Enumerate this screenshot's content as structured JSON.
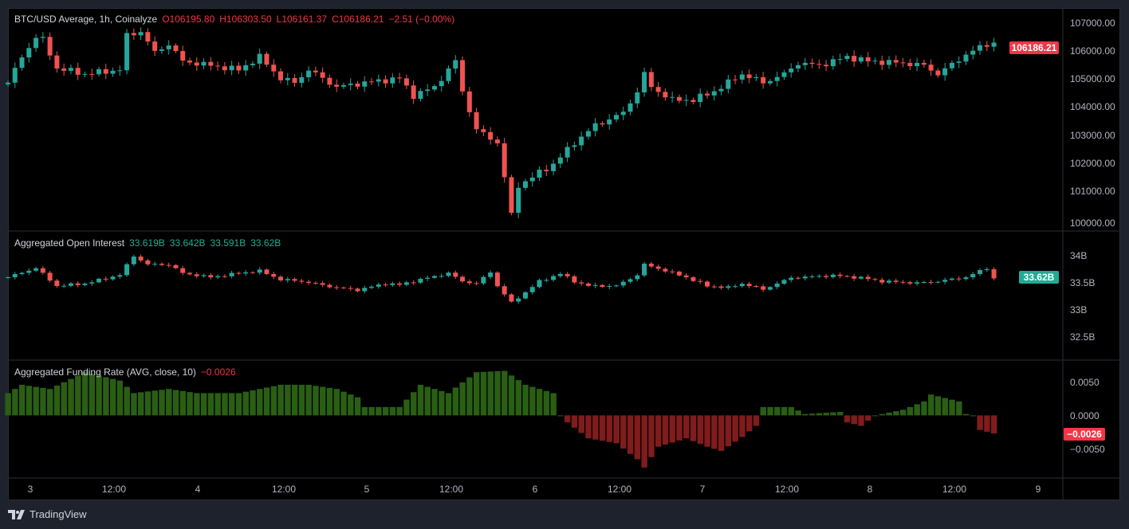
{
  "main_legend": {
    "symbol": "BTC/USD Average, 1h, Coinalyze",
    "open": "O106195.80",
    "high": "H106303.50",
    "low": "L106161.37",
    "close": "C106186.21",
    "change": "−2.51 (−0.00%)"
  },
  "oi_legend": {
    "title": "Aggregated Open Interest",
    "o": "33.619B",
    "h": "33.642B",
    "l": "33.591B",
    "c": "33.62B"
  },
  "fr_legend": {
    "title": "Aggregated Funding Rate (AVG, close, 10)",
    "value": "−0.0026"
  },
  "brand": "TradingView",
  "colors": {
    "up": "#26a69a",
    "down": "#ef5350",
    "fr_pos": "#2a5e14",
    "fr_neg": "#801c1c"
  },
  "chart_data": [
    {
      "type": "candlestick",
      "title": "BTC/USD Average, 1h, Coinalyze",
      "ylim": [
        100000,
        107000
      ],
      "y_ticks": [
        "107000.00",
        "106000.00",
        "105000.00",
        "104000.00",
        "103000.00",
        "102000.00",
        "101000.00",
        "100000.00"
      ],
      "last_value": "106186.21",
      "close_keypoints": [
        [
          0,
          104880
        ],
        [
          2,
          105720
        ],
        [
          4,
          106360
        ],
        [
          5,
          106280
        ],
        [
          7,
          105350
        ],
        [
          11,
          105160
        ],
        [
          16,
          105300
        ],
        [
          17,
          106410
        ],
        [
          19,
          106550
        ],
        [
          21,
          105860
        ],
        [
          23,
          106140
        ],
        [
          25,
          105580
        ],
        [
          29,
          105440
        ],
        [
          33,
          105300
        ],
        [
          36,
          105720
        ],
        [
          39,
          105020
        ],
        [
          41,
          104880
        ],
        [
          43,
          105300
        ],
        [
          47,
          104740
        ],
        [
          51,
          104880
        ],
        [
          56,
          105020
        ],
        [
          58,
          104460
        ],
        [
          61,
          104740
        ],
        [
          64,
          105580
        ],
        [
          65,
          104600
        ],
        [
          67,
          103350
        ],
        [
          70,
          102930
        ],
        [
          71,
          101810
        ],
        [
          72,
          100560
        ],
        [
          73,
          101530
        ],
        [
          75,
          101810
        ],
        [
          78,
          102230
        ],
        [
          81,
          102930
        ],
        [
          84,
          103490
        ],
        [
          88,
          103900
        ],
        [
          90,
          104600
        ],
        [
          91,
          105160
        ],
        [
          92,
          104740
        ],
        [
          95,
          104320
        ],
        [
          98,
          104320
        ],
        [
          101,
          104600
        ],
        [
          105,
          105160
        ],
        [
          108,
          104880
        ],
        [
          111,
          105160
        ],
        [
          113,
          105520
        ],
        [
          116,
          105440
        ],
        [
          120,
          105720
        ],
        [
          123,
          105580
        ],
        [
          128,
          105520
        ],
        [
          131,
          105440
        ],
        [
          133,
          105160
        ],
        [
          136,
          105630
        ],
        [
          137,
          105800
        ],
        [
          140,
          106140
        ],
        [
          141,
          106186
        ]
      ]
    },
    {
      "type": "candlestick",
      "title": "Aggregated Open Interest",
      "unit": "B",
      "ylim": [
        32.25,
        34.3
      ],
      "y_ticks": [
        "34B",
        "33.5B",
        "33B",
        "32.5B"
      ],
      "last_value": "33.62B",
      "close_keypoints": [
        [
          0,
          33.64
        ],
        [
          4,
          33.8
        ],
        [
          7,
          33.49
        ],
        [
          11,
          33.53
        ],
        [
          16,
          33.68
        ],
        [
          18,
          34.01
        ],
        [
          20,
          33.86
        ],
        [
          23,
          33.86
        ],
        [
          25,
          33.71
        ],
        [
          29,
          33.64
        ],
        [
          33,
          33.71
        ],
        [
          36,
          33.75
        ],
        [
          39,
          33.6
        ],
        [
          42,
          33.57
        ],
        [
          47,
          33.46
        ],
        [
          50,
          33.42
        ],
        [
          54,
          33.53
        ],
        [
          56,
          33.51
        ],
        [
          59,
          33.6
        ],
        [
          63,
          33.71
        ],
        [
          65,
          33.57
        ],
        [
          67,
          33.53
        ],
        [
          69,
          33.73
        ],
        [
          70,
          33.49
        ],
        [
          72,
          33.2
        ],
        [
          74,
          33.38
        ],
        [
          76,
          33.57
        ],
        [
          79,
          33.7
        ],
        [
          81,
          33.57
        ],
        [
          83,
          33.49
        ],
        [
          87,
          33.49
        ],
        [
          90,
          33.68
        ],
        [
          91,
          33.86
        ],
        [
          93,
          33.79
        ],
        [
          97,
          33.64
        ],
        [
          100,
          33.49
        ],
        [
          103,
          33.46
        ],
        [
          105,
          33.53
        ],
        [
          108,
          33.43
        ],
        [
          112,
          33.63
        ],
        [
          118,
          33.67
        ],
        [
          122,
          33.63
        ],
        [
          125,
          33.57
        ],
        [
          130,
          33.54
        ],
        [
          133,
          33.57
        ],
        [
          137,
          33.64
        ],
        [
          140,
          33.8
        ],
        [
          141,
          33.62
        ]
      ]
    },
    {
      "type": "bar",
      "title": "Aggregated Funding Rate (AVG, close, 10)",
      "ylim": [
        -0.009,
        0.0068
      ],
      "y_ticks": [
        "0.0050",
        "0.0000",
        "−0.0050"
      ],
      "last_value": "−0.0026",
      "value_keypoints": [
        [
          0,
          0.0032
        ],
        [
          2,
          0.0044
        ],
        [
          6,
          0.0038
        ],
        [
          11,
          0.0062
        ],
        [
          16,
          0.005
        ],
        [
          18,
          0.0032
        ],
        [
          23,
          0.0038
        ],
        [
          27,
          0.0032
        ],
        [
          33,
          0.0032
        ],
        [
          36,
          0.0038
        ],
        [
          39,
          0.0044
        ],
        [
          43,
          0.0044
        ],
        [
          47,
          0.0038
        ],
        [
          50,
          0.0026
        ],
        [
          51,
          0.0012
        ],
        [
          56,
          0.0012
        ],
        [
          59,
          0.0044
        ],
        [
          63,
          0.0032
        ],
        [
          64,
          0.004
        ],
        [
          67,
          0.0062
        ],
        [
          71,
          0.0064
        ],
        [
          74,
          0.0044
        ],
        [
          78,
          0.0032
        ],
        [
          79,
          0.0
        ],
        [
          80,
          -0.001
        ],
        [
          83,
          -0.0033
        ],
        [
          87,
          -0.004
        ],
        [
          90,
          -0.0063
        ],
        [
          91,
          -0.0075
        ],
        [
          93,
          -0.0045
        ],
        [
          97,
          -0.0033
        ],
        [
          100,
          -0.0045
        ],
        [
          102,
          -0.0051
        ],
        [
          105,
          -0.0031
        ],
        [
          107,
          -0.0015
        ],
        [
          108,
          0.0012
        ],
        [
          112,
          0.0012
        ],
        [
          114,
          0.0002
        ],
        [
          119,
          0.0005
        ],
        [
          120,
          -0.001
        ],
        [
          122,
          -0.0015
        ],
        [
          124,
          0.0
        ],
        [
          128,
          0.0008
        ],
        [
          131,
          0.002
        ],
        [
          132,
          0.003
        ],
        [
          136,
          0.002
        ],
        [
          137,
          0.0002
        ],
        [
          138,
          0.0
        ],
        [
          139,
          -0.0021
        ],
        [
          141,
          -0.0026
        ]
      ]
    }
  ],
  "x_axis": {
    "labels": [
      "3",
      "12:00",
      "4",
      "12:00",
      "5",
      "12:00",
      "6",
      "12:00",
      "7",
      "12:00",
      "8",
      "12:00",
      "9"
    ]
  }
}
